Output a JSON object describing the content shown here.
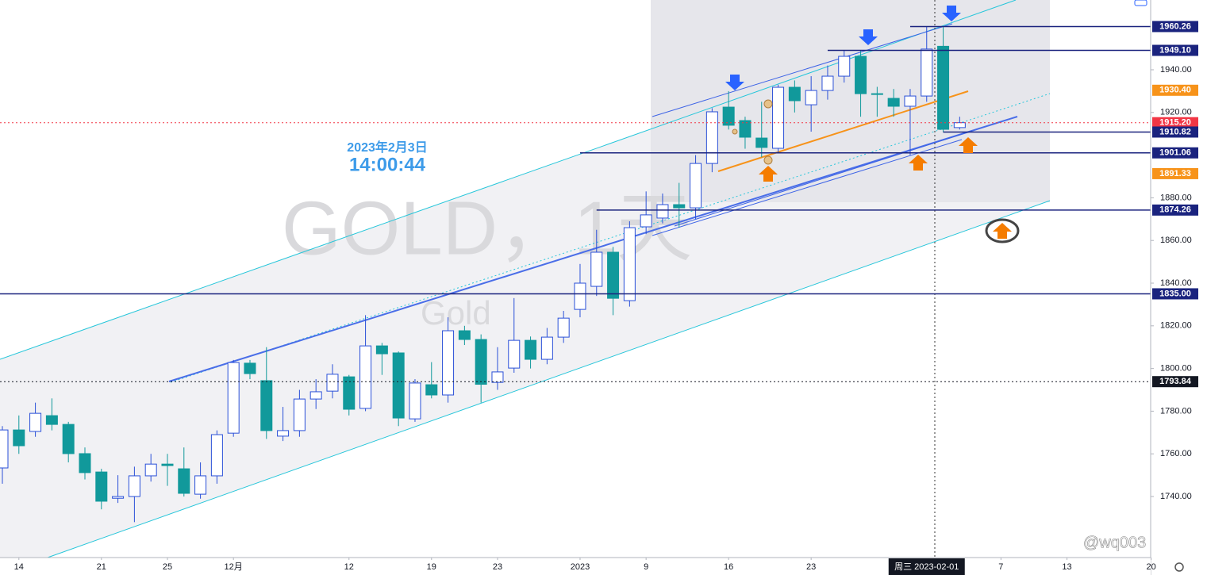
{
  "chart_data": {
    "type": "candlestick",
    "watermark": "GOLD，1天",
    "watermark_sub": "Gold",
    "annotation_date": "2023年2月3日",
    "annotation_time": "14:00:44",
    "credit": "@wq003",
    "x": [
      0,
      1,
      2,
      3,
      4,
      5,
      6,
      7,
      8,
      9,
      10,
      11,
      12,
      13,
      14,
      15,
      16,
      17,
      18,
      19,
      20,
      21,
      22,
      23,
      24,
      25,
      26,
      27,
      28,
      29,
      30,
      31,
      32,
      33,
      34,
      35,
      36,
      37,
      38,
      39,
      40,
      41,
      42,
      43,
      44,
      45,
      46,
      47,
      48,
      49,
      50,
      51,
      52,
      53,
      54,
      55,
      56,
      57,
      58
    ],
    "open": [
      1753.4,
      1771.2,
      1770.5,
      1777.9,
      1773.8,
      1760.1,
      1751.5,
      1739.2,
      1740.0,
      1749.7,
      1755.2,
      1753.0,
      1741.1,
      1749.7,
      1769.7,
      1802.5,
      1794.3,
      1768.3,
      1770.9,
      1785.7,
      1789.4,
      1796.1,
      1781.3,
      1810.6,
      1807.3,
      1776.4,
      1792.4,
      1787.6,
      1817.7,
      1813.6,
      1793.5,
      1800.2,
      1813.2,
      1804.3,
      1814.7,
      1827.7,
      1838.5,
      1854.5,
      1831.8,
      1866.4,
      1870.5,
      1876.8,
      1875.3,
      1896.1,
      1922.5,
      1916.2,
      1908.0,
      1903.2,
      1931.8,
      1923.6,
      1930.3,
      1937.0,
      1946.3,
      1928.8,
      1926.6,
      1922.9,
      1927.7,
      1951.0,
      1912.9
    ],
    "high": [
      1773,
      1778,
      1784,
      1786,
      1775,
      1763,
      1753,
      1750,
      1754,
      1760,
      1760,
      1763,
      1756,
      1771,
      1804,
      1804,
      1810,
      1782,
      1790,
      1795,
      1802,
      1797,
      1825,
      1812,
      1808,
      1795,
      1803,
      1824,
      1820,
      1816,
      1810,
      1833,
      1815,
      1819,
      1827,
      1849,
      1865,
      1857,
      1869,
      1883,
      1882,
      1887,
      1900,
      1922,
      1930,
      1918,
      1925,
      1933,
      1935,
      1937,
      1942,
      1949,
      1949,
      1932,
      1931,
      1931,
      1960.3,
      1960,
      1918
    ],
    "low": [
      1746,
      1760,
      1768,
      1771,
      1756,
      1748,
      1734,
      1737,
      1728,
      1747,
      1745,
      1740,
      1739,
      1746,
      1768,
      1795,
      1767,
      1766,
      1768,
      1781,
      1786,
      1778,
      1780,
      1797,
      1773,
      1775,
      1786,
      1784,
      1811,
      1784,
      1790,
      1798,
      1800,
      1802,
      1812,
      1824,
      1834,
      1825,
      1829,
      1863,
      1868,
      1866,
      1870,
      1892,
      1912,
      1903,
      1899,
      1901,
      1920,
      1911,
      1926,
      1934,
      1918,
      1918,
      1918,
      1900,
      1925,
      1910.8,
      1912
    ],
    "close": [
      1771.2,
      1763.8,
      1779.0,
      1773.8,
      1760.1,
      1751.2,
      1737.8,
      1740.0,
      1749.7,
      1755.2,
      1754.5,
      1741.5,
      1749.7,
      1769.0,
      1802.8,
      1797.6,
      1770.9,
      1770.9,
      1785.7,
      1789.1,
      1797.3,
      1780.9,
      1810.6,
      1806.9,
      1776.8,
      1793.2,
      1787.6,
      1817.7,
      1813.6,
      1792.6,
      1798.4,
      1813.2,
      1804.3,
      1814.7,
      1823.6,
      1840.0,
      1854.5,
      1832.9,
      1866.0,
      1872.0,
      1876.8,
      1875.3,
      1896.1,
      1920.3,
      1914.0,
      1908.4,
      1903.6,
      1931.8,
      1925.5,
      1930.3,
      1937.0,
      1946.3,
      1928.8,
      1928.5,
      1922.9,
      1927.7,
      1949.7,
      1912.1,
      1915.2
    ],
    "up_color": "#2a50d8",
    "down_color": "#11999b",
    "xlim": [
      -0.144,
      69.57
    ],
    "ylim": [
      1711.4,
      1972.7
    ],
    "xticks": [
      {
        "value": 1,
        "label": "14"
      },
      {
        "value": 6,
        "label": "21"
      },
      {
        "value": 10,
        "label": "25"
      },
      {
        "value": 14,
        "label": "12月"
      },
      {
        "value": 21,
        "label": "12"
      },
      {
        "value": 26,
        "label": "19"
      },
      {
        "value": 30,
        "label": "23"
      },
      {
        "value": 35,
        "label": "2023"
      },
      {
        "value": 39,
        "label": "9"
      },
      {
        "value": 44,
        "label": "16"
      },
      {
        "value": 49,
        "label": "23"
      },
      {
        "value": 60.5,
        "label": "7"
      },
      {
        "value": 64.5,
        "label": "13"
      },
      {
        "value": 69.6,
        "label": "20"
      }
    ],
    "crosshair_x": {
      "value": 56,
      "label": "周三 2023-02-01"
    },
    "yticks": [
      {
        "value": 1740,
        "label": "1740.00"
      },
      {
        "value": 1760,
        "label": "1760.00"
      },
      {
        "value": 1780,
        "label": "1780.00"
      },
      {
        "value": 1800,
        "label": "1800.00"
      },
      {
        "value": 1820,
        "label": "1820.00"
      },
      {
        "value": 1840,
        "label": "1840.00"
      },
      {
        "value": 1860,
        "label": "1860.00"
      },
      {
        "value": 1880,
        "label": "1880.00"
      },
      {
        "value": 1920,
        "label": "1920.00"
      },
      {
        "value": 1940,
        "label": "1940.00"
      }
    ],
    "price_lines": [
      {
        "value": 1960.26,
        "label": "1960.26",
        "color": "#1a237e",
        "start": 55
      },
      {
        "value": 1949.1,
        "label": "1949.10",
        "color": "#1a237e",
        "start": 50
      },
      {
        "value": 1930.4,
        "label": "1930.40",
        "color": "#f7931a",
        "start": null
      },
      {
        "value": 1915.2,
        "label": "1915.20",
        "color": "#f23645",
        "start": -0.144,
        "dotted": true
      },
      {
        "value": 1910.82,
        "label": "1910.82",
        "color": "#1a237e",
        "start": 57
      },
      {
        "value": 1901.06,
        "label": "1901.06",
        "color": "#1a237e",
        "start": 35
      },
      {
        "value": 1891.33,
        "label": "1891.33",
        "color": "#f7931a",
        "start": null
      },
      {
        "value": 1874.26,
        "label": "1874.26",
        "color": "#1a237e",
        "start": 36
      },
      {
        "value": 1835.0,
        "label": "1835.00",
        "color": "#1a237e",
        "start": -0.144
      },
      {
        "value": 1793.84,
        "label": "1793.84",
        "color": "#131722",
        "start": -0.144,
        "dotted": true
      }
    ]
  }
}
